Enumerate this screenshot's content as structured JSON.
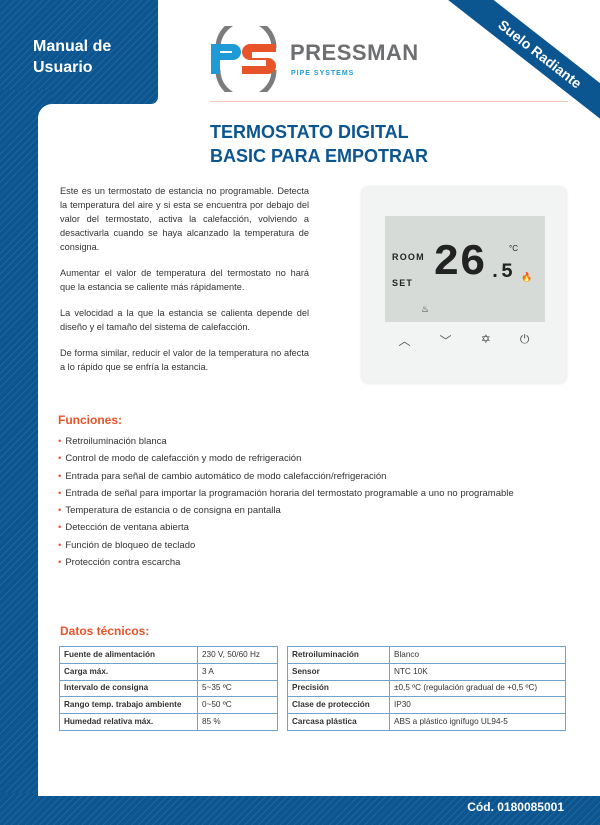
{
  "header": {
    "manual": "Manual de Usuario",
    "manual_l1": "Manual de",
    "manual_l2": "Usuario",
    "ribbon": "Suelo Radiante",
    "brand": "PRESSMAN",
    "brand_sub": "PIPE SYSTEMS",
    "logo_letters": "PS"
  },
  "title": {
    "line1": "TERMOSTATO DIGITAL",
    "line2": "BASIC PARA EMPOTRAR"
  },
  "intro": [
    "Este es un termostato de estancia no programable. Detecta la temperatura del aire y si esta se encuentra por debajo del valor del termostato, activa la calefacción, volviendo a desactivarla cuando se haya alcanzado la temperatura de consigna.",
    "Aumentar el valor de temperatura del termostato no hará que la estancia se caliente más rápidamente.",
    "La velocidad a la que la estancia se calienta depende del diseño y el tamaño del sistema de calefacción.",
    "De forma similar, reducir el valor de la temperatura no afecta a lo rápido que se enfría la estancia."
  ],
  "device": {
    "room": "ROOM",
    "set": "SET",
    "temp_int": "26",
    "temp_dec": ".5",
    "unit": "°C",
    "buttons": [
      "up-icon",
      "down-icon",
      "settings-icon",
      "power-icon"
    ]
  },
  "funciones": {
    "heading": "Funciones:",
    "items": [
      "Retroiluminación blanca",
      "Control de modo de calefacción y modo de refrigeración",
      "Entrada para señal de cambio automático de modo calefacción/refrigeración",
      "Entrada de señal para importar la programación horaria del termostato programable a uno no programable",
      "Temperatura de estancia o de consigna en pantalla",
      "Detección de ventana abierta",
      "Función de bloqueo de teclado",
      "Protección contra escarcha"
    ]
  },
  "datos": {
    "heading": "Datos técnicos:",
    "left": [
      [
        "Fuente de alimentación",
        "230 V, 50/60 Hz"
      ],
      [
        "Carga máx.",
        "3 A"
      ],
      [
        "Intervalo de consigna",
        "5~35 ºC"
      ],
      [
        "Rango temp. trabajo ambiente",
        "0~50 ºC"
      ],
      [
        "Humedad relativa máx.",
        "85 %"
      ]
    ],
    "right": [
      [
        "Retroiluminación",
        "Blanco"
      ],
      [
        "Sensor",
        "NTC 10K"
      ],
      [
        "Precisión",
        "±0,5  ºC  (regulación gradual de +0,5 ºC)"
      ],
      [
        "Clase de protección",
        "IP30"
      ],
      [
        "Carcasa plástica",
        "ABS a plástico ignífugo UL94-5"
      ]
    ]
  },
  "footer": {
    "code": "Cód. 0180085001"
  },
  "colors": {
    "blue": "#0b5590",
    "orange": "#e8542a",
    "light_blue": "#1e9ad6"
  }
}
